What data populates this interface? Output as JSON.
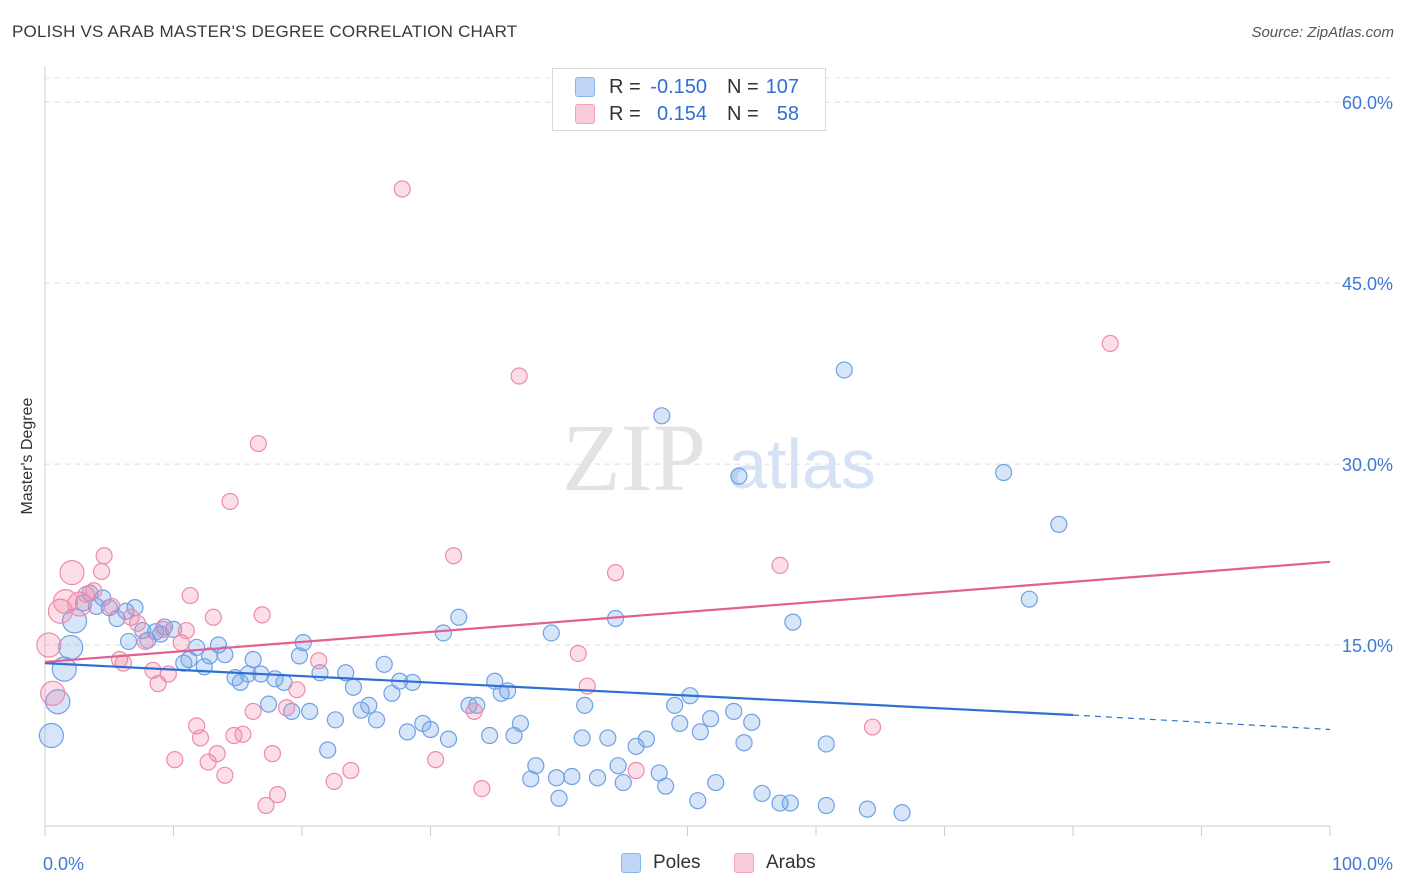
{
  "title": "POLISH VS ARAB MASTER'S DEGREE CORRELATION CHART",
  "source": "Source: ZipAtlas.com",
  "watermark": {
    "zip": "ZIP",
    "atlas": "atlas"
  },
  "legend_top": [
    {
      "r_label": "R =",
      "r_value": "-0.150",
      "n_label": "N =",
      "n_value": "107",
      "color": "#8ab4f0"
    },
    {
      "r_label": "R =",
      "r_value": "0.154",
      "n_label": "N =",
      "n_value": "58",
      "color": "#f4a3bd"
    }
  ],
  "legend_bottom": [
    {
      "label": "Poles",
      "color": "#8ab4f0"
    },
    {
      "label": "Arabs",
      "color": "#f4a3bd"
    }
  ],
  "chart_data": {
    "type": "scatter",
    "title": "POLISH VS ARAB MASTER'S DEGREE CORRELATION CHART",
    "xlabel": "",
    "ylabel": "Master's Degree",
    "xlim": [
      0,
      100
    ],
    "ylim": [
      0,
      62
    ],
    "x_tick_labels": [
      "0.0%",
      "100.0%"
    ],
    "y_ticks": [
      15,
      30,
      45,
      60
    ],
    "y_tick_labels": [
      "15.0%",
      "30.0%",
      "45.0%",
      "60.0%"
    ],
    "grid": true,
    "legend_position": "top-center",
    "series": [
      {
        "name": "Poles",
        "color": "#6fa1e6",
        "trend": {
          "x0": 0,
          "y0": 13.5,
          "x1": 80,
          "y1": 9.2,
          "dash_to_x": 100,
          "dash_to_y": 8.0,
          "color": "#2f6fd4"
        },
        "points": [
          [
            0.5,
            7.5
          ],
          [
            1,
            10.3
          ],
          [
            1.5,
            13
          ],
          [
            2,
            14.8
          ],
          [
            2.3,
            17
          ],
          [
            3,
            18.5
          ],
          [
            3.5,
            19.3
          ],
          [
            4,
            18.2
          ],
          [
            4.5,
            18.9
          ],
          [
            5,
            18.1
          ],
          [
            5.6,
            17.2
          ],
          [
            6.3,
            17.8
          ],
          [
            6.5,
            15.3
          ],
          [
            7,
            18.1
          ],
          [
            7.6,
            16.2
          ],
          [
            8,
            15.4
          ],
          [
            8.6,
            16.1
          ],
          [
            9,
            15.9
          ],
          [
            9.3,
            16.5
          ],
          [
            10,
            16.3
          ],
          [
            10.8,
            13.5
          ],
          [
            11.2,
            13.8
          ],
          [
            11.8,
            14.8
          ],
          [
            12.4,
            13.2
          ],
          [
            12.8,
            14.1
          ],
          [
            13.5,
            15
          ],
          [
            14,
            14.2
          ],
          [
            14.8,
            12.3
          ],
          [
            15.2,
            11.9
          ],
          [
            15.8,
            12.6
          ],
          [
            16.2,
            13.8
          ],
          [
            16.8,
            12.6
          ],
          [
            17.4,
            10.1
          ],
          [
            17.9,
            12.2
          ],
          [
            18.6,
            11.9
          ],
          [
            19.2,
            9.5
          ],
          [
            19.8,
            14.1
          ],
          [
            20.1,
            15.2
          ],
          [
            20.6,
            9.5
          ],
          [
            21.4,
            12.7
          ],
          [
            22,
            6.3
          ],
          [
            22.6,
            8.8
          ],
          [
            23.4,
            12.7
          ],
          [
            24,
            11.5
          ],
          [
            24.6,
            9.6
          ],
          [
            25.2,
            10
          ],
          [
            25.8,
            8.8
          ],
          [
            26.4,
            13.4
          ],
          [
            27,
            11
          ],
          [
            27.6,
            12
          ],
          [
            28.2,
            7.8
          ],
          [
            28.6,
            11.9
          ],
          [
            29.4,
            8.5
          ],
          [
            30,
            8
          ],
          [
            31,
            16
          ],
          [
            31.4,
            7.2
          ],
          [
            32.2,
            17.3
          ],
          [
            33,
            10
          ],
          [
            33.6,
            10
          ],
          [
            34.6,
            7.5
          ],
          [
            35,
            12
          ],
          [
            35.5,
            11
          ],
          [
            36,
            11.2
          ],
          [
            36.5,
            7.5
          ],
          [
            37,
            8.5
          ],
          [
            37.8,
            3.9
          ],
          [
            38.2,
            5
          ],
          [
            39.4,
            16
          ],
          [
            39.8,
            4
          ],
          [
            40,
            2.3
          ],
          [
            41,
            4.1
          ],
          [
            41.8,
            7.3
          ],
          [
            42,
            10
          ],
          [
            43,
            4
          ],
          [
            43.8,
            7.3
          ],
          [
            44.4,
            17.2
          ],
          [
            44.6,
            5
          ],
          [
            45,
            3.6
          ],
          [
            46,
            6.6
          ],
          [
            46.8,
            7.2
          ],
          [
            47.8,
            4.4
          ],
          [
            48,
            34
          ],
          [
            48.3,
            3.3
          ],
          [
            49,
            10
          ],
          [
            49.4,
            8.5
          ],
          [
            50.2,
            10.8
          ],
          [
            50.8,
            2.1
          ],
          [
            51,
            7.8
          ],
          [
            51.8,
            8.9
          ],
          [
            52.2,
            3.6
          ],
          [
            53.6,
            9.5
          ],
          [
            54,
            29
          ],
          [
            54.4,
            6.9
          ],
          [
            55,
            8.6
          ],
          [
            55.8,
            2.7
          ],
          [
            57.2,
            1.9
          ],
          [
            58,
            1.9
          ],
          [
            58.2,
            16.9
          ],
          [
            60.8,
            1.7
          ],
          [
            60.8,
            6.8
          ],
          [
            62.2,
            37.8
          ],
          [
            64,
            1.4
          ],
          [
            66.7,
            1.1
          ],
          [
            74.6,
            29.3
          ],
          [
            76.6,
            18.8
          ],
          [
            78.9,
            25
          ]
        ]
      },
      {
        "name": "Arabs",
        "color": "#f08aaa",
        "trend": {
          "x0": 0,
          "y0": 13.6,
          "x1": 100,
          "y1": 21.9,
          "color": "#e0608f"
        },
        "points": [
          [
            0.3,
            15
          ],
          [
            0.6,
            11
          ],
          [
            1.2,
            17.8
          ],
          [
            1.6,
            18.6
          ],
          [
            2.1,
            21
          ],
          [
            2.7,
            18.4
          ],
          [
            3.2,
            19.2
          ],
          [
            3.8,
            19.5
          ],
          [
            4.6,
            22.4
          ],
          [
            4.4,
            21.1
          ],
          [
            5.2,
            18.2
          ],
          [
            5.8,
            13.8
          ],
          [
            6.1,
            13.5
          ],
          [
            6.7,
            17.3
          ],
          [
            7.2,
            16.8
          ],
          [
            7.8,
            15.3
          ],
          [
            8.4,
            12.9
          ],
          [
            8.8,
            11.8
          ],
          [
            9.2,
            16.3
          ],
          [
            9.6,
            12.6
          ],
          [
            10.1,
            5.5
          ],
          [
            10.6,
            15.2
          ],
          [
            11,
            16.2
          ],
          [
            11.3,
            19.1
          ],
          [
            11.8,
            8.3
          ],
          [
            12.1,
            7.3
          ],
          [
            12.7,
            5.3
          ],
          [
            13.1,
            17.3
          ],
          [
            13.4,
            6
          ],
          [
            14,
            4.2
          ],
          [
            14.4,
            26.9
          ],
          [
            14.7,
            7.5
          ],
          [
            15.4,
            7.6
          ],
          [
            16.2,
            9.5
          ],
          [
            16.6,
            31.7
          ],
          [
            16.9,
            17.5
          ],
          [
            17.2,
            1.7
          ],
          [
            17.7,
            6
          ],
          [
            18.1,
            2.6
          ],
          [
            18.8,
            9.8
          ],
          [
            19.6,
            11.3
          ],
          [
            21.3,
            13.7
          ],
          [
            22.5,
            3.7
          ],
          [
            23.8,
            4.6
          ],
          [
            27.8,
            52.8
          ],
          [
            30.4,
            5.5
          ],
          [
            31.8,
            22.4
          ],
          [
            33.4,
            9.5
          ],
          [
            34,
            3.1
          ],
          [
            36.9,
            37.3
          ],
          [
            41.5,
            14.3
          ],
          [
            42.2,
            11.6
          ],
          [
            44.4,
            21
          ],
          [
            46,
            4.6
          ],
          [
            57.2,
            21.6
          ],
          [
            64.4,
            8.2
          ],
          [
            82.9,
            40
          ]
        ]
      }
    ]
  }
}
